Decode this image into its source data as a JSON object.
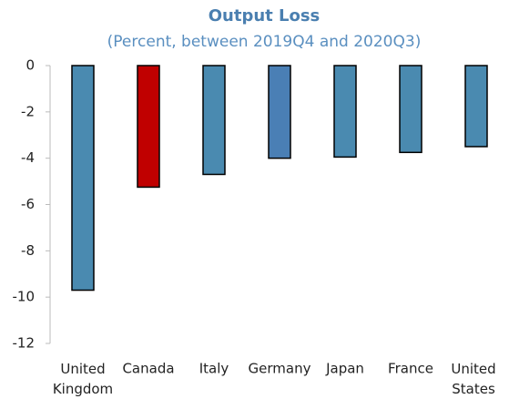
{
  "chart_data": {
    "type": "bar",
    "title": "Output Loss",
    "subtitle": "(Percent, between 2019Q4 and 2020Q3)",
    "categories": [
      "United Kingdom",
      "Canada",
      "Italy",
      "Germany",
      "Japan",
      "France",
      "United States"
    ],
    "values": [
      -9.7,
      -5.25,
      -4.7,
      -4.0,
      -3.95,
      -3.75,
      -3.5
    ],
    "colors": [
      "#4a8ab0",
      "#c00000",
      "#4a8ab0",
      "#4a7fb5",
      "#4a8ab0",
      "#4a8ab0",
      "#4a8ab0"
    ],
    "ylim": [
      -12,
      0
    ],
    "yticks": [
      0,
      -2,
      -4,
      -6,
      -8,
      -10,
      -12
    ],
    "grid": false
  }
}
